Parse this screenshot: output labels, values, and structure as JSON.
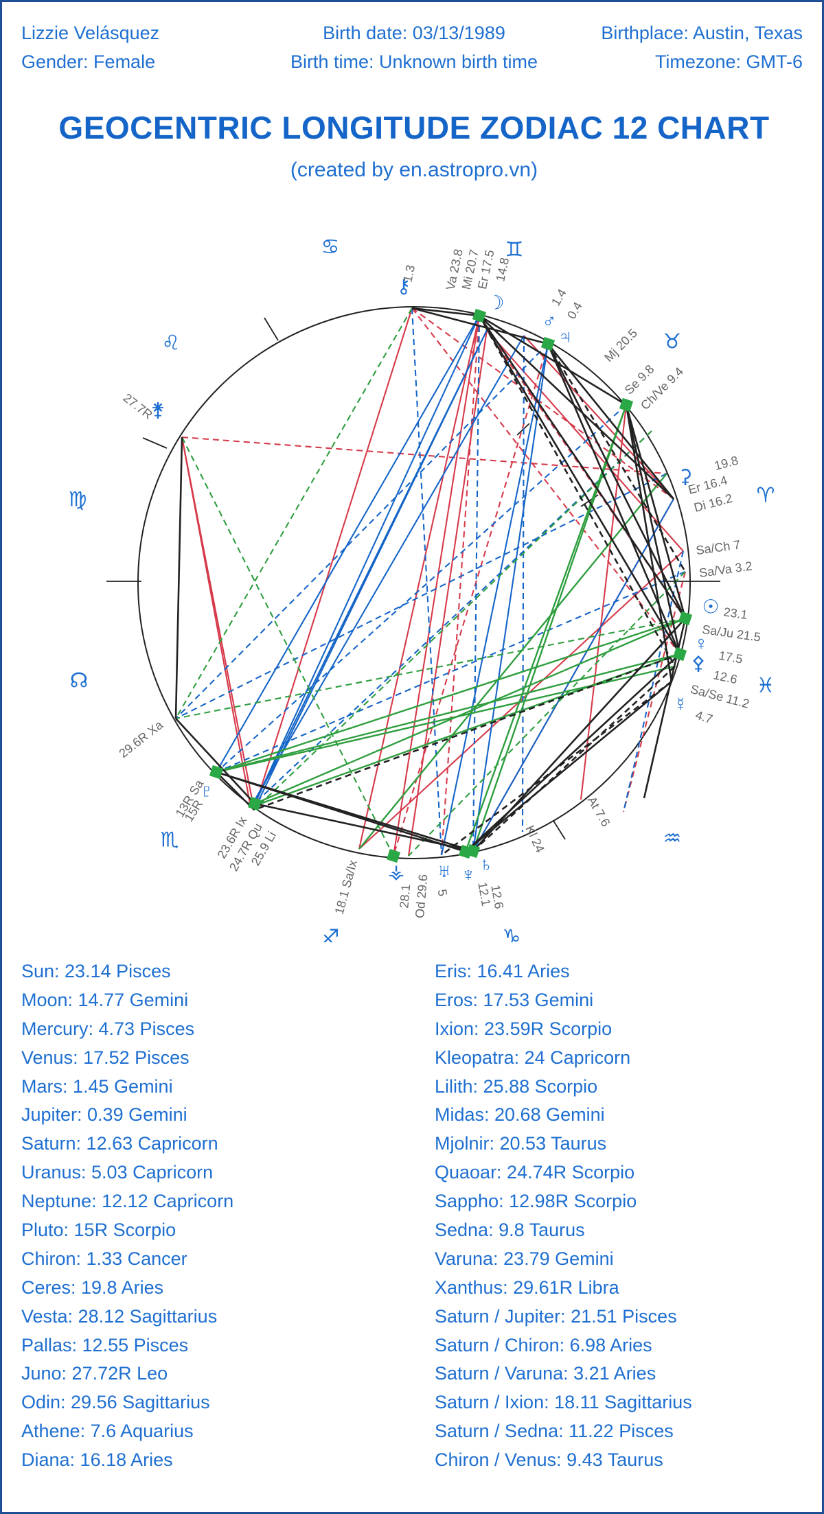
{
  "header": {
    "name": "Lizzie Velásquez",
    "gender": "Gender: Female",
    "birth_date": "Birth date: 03/13/1989",
    "birth_time": "Birth time: Unknown birth time",
    "birthplace": "Birthplace: Austin, Texas",
    "timezone": "Timezone: GMT-6"
  },
  "title": "GEOCENTRIC LONGITUDE ZODIAC 12 CHART",
  "subtitle": "(created by en.astropro.vn)",
  "colors": {
    "text": "#1e6fd1",
    "red": "#d63a4a",
    "blue": "#1565c8",
    "green": "#2e9e3e",
    "black": "#222222",
    "marker": "#2aa845"
  },
  "wheel": {
    "signs": [
      {
        "glyph": "♈",
        "icon": "aries-icon"
      },
      {
        "glyph": "♉",
        "icon": "taurus-icon"
      },
      {
        "glyph": "♊",
        "icon": "gemini-icon"
      },
      {
        "glyph": "♋",
        "icon": "cancer-icon"
      },
      {
        "glyph": "♌",
        "icon": "leo-icon"
      },
      {
        "glyph": "♍",
        "icon": "virgo-icon"
      },
      {
        "glyph": "☊",
        "icon": "north-node-icon"
      },
      {
        "glyph": "♏",
        "icon": "scorpio-icon"
      },
      {
        "glyph": "♐",
        "icon": "sagittarius-icon"
      },
      {
        "glyph": "♑",
        "icon": "capricorn-icon"
      },
      {
        "glyph": "♒",
        "icon": "aquarius-icon"
      },
      {
        "glyph": "♓",
        "icon": "pisces-icon"
      }
    ],
    "labels": [
      {
        "text": "⚷",
        "icon": "chiron-icon"
      },
      {
        "text": "1.3"
      },
      {
        "text": "Va 23.8"
      },
      {
        "text": "Mi 20.7"
      },
      {
        "text": "Er 17.5"
      },
      {
        "text": "14.8"
      },
      {
        "text": "☽",
        "icon": "moon-icon"
      },
      {
        "text": "♂",
        "icon": "mars-icon"
      },
      {
        "text": "1.4"
      },
      {
        "text": "♃",
        "icon": "jupiter-icon"
      },
      {
        "text": "0.4"
      },
      {
        "text": "Mj 20.5"
      },
      {
        "text": "Se 9.8"
      },
      {
        "text": "Ch/Ve 9.4"
      },
      {
        "text": "⚳",
        "icon": "ceres-icon"
      },
      {
        "text": "19.8"
      },
      {
        "text": "Er 16.4"
      },
      {
        "text": "Di 16.2"
      },
      {
        "text": "Sa/Ch 7"
      },
      {
        "text": "Sa/Va 3.2"
      },
      {
        "text": "☉",
        "icon": "sun-icon"
      },
      {
        "text": "23.1"
      },
      {
        "text": "Sa/Ju 21.5"
      },
      {
        "text": "♀",
        "icon": "venus-icon"
      },
      {
        "text": "17.5"
      },
      {
        "text": "⚴",
        "icon": "pallas-icon"
      },
      {
        "text": "12.6"
      },
      {
        "text": "Sa/Se 11.2"
      },
      {
        "text": "☿",
        "icon": "mercury-icon"
      },
      {
        "text": "4.7"
      },
      {
        "text": "At 7.6"
      },
      {
        "text": "Kl 24"
      },
      {
        "text": "♆",
        "icon": "neptune-icon"
      },
      {
        "text": "12.1"
      },
      {
        "text": "♄",
        "icon": "saturn-icon"
      },
      {
        "text": "12.6"
      },
      {
        "text": "♅",
        "icon": "uranus-icon"
      },
      {
        "text": "5"
      },
      {
        "text": "Od 29.6"
      },
      {
        "text": "28.1"
      },
      {
        "text": "⚶",
        "icon": "vesta-icon"
      },
      {
        "text": "18.1 Sa/Ix"
      },
      {
        "text": "25.9 Li"
      },
      {
        "text": "24.7R Qu"
      },
      {
        "text": "23.6R Ix"
      },
      {
        "text": "15R"
      },
      {
        "text": "13R Sa"
      },
      {
        "text": "♇",
        "icon": "pluto-icon"
      },
      {
        "text": "29.6R Xa"
      },
      {
        "text": "27.7R"
      },
      {
        "text": "⚵",
        "icon": "juno-icon"
      }
    ]
  },
  "positions": {
    "left": [
      "Sun: 23.14 Pisces",
      "Moon: 14.77 Gemini",
      "Mercury: 4.73 Pisces",
      "Venus: 17.52 Pisces",
      "Mars: 1.45 Gemini",
      "Jupiter: 0.39 Gemini",
      "Saturn: 12.63 Capricorn",
      "Uranus: 5.03 Capricorn",
      "Neptune: 12.12 Capricorn",
      "Pluto: 15R Scorpio",
      "Chiron: 1.33 Cancer",
      "Ceres: 19.8 Aries",
      "Vesta: 28.12 Sagittarius",
      "Pallas: 12.55 Pisces",
      "Juno: 27.72R Leo",
      "Odin: 29.56 Sagittarius",
      "Athene: 7.6 Aquarius",
      "Diana: 16.18 Aries"
    ],
    "right": [
      "Eris: 16.41 Aries",
      "Eros: 17.53 Gemini",
      "Ixion: 23.59R Scorpio",
      "Kleopatra: 24 Capricorn",
      "Lilith: 25.88 Scorpio",
      "Midas: 20.68 Gemini",
      "Mjolnir: 20.53 Taurus",
      "Quaoar: 24.74R Scorpio",
      "Sappho: 12.98R Scorpio",
      "Sedna: 9.8 Taurus",
      "Varuna: 23.79 Gemini",
      "Xanthus: 29.61R Libra",
      "Saturn / Jupiter: 21.51 Pisces",
      "Saturn / Chiron: 6.98 Aries",
      "Saturn / Varuna: 3.21 Aries",
      "Saturn / Ixion: 18.11 Sagittarius",
      "Saturn / Sedna: 11.22 Pisces",
      "Chiron / Venus: 9.43 Taurus"
    ]
  }
}
